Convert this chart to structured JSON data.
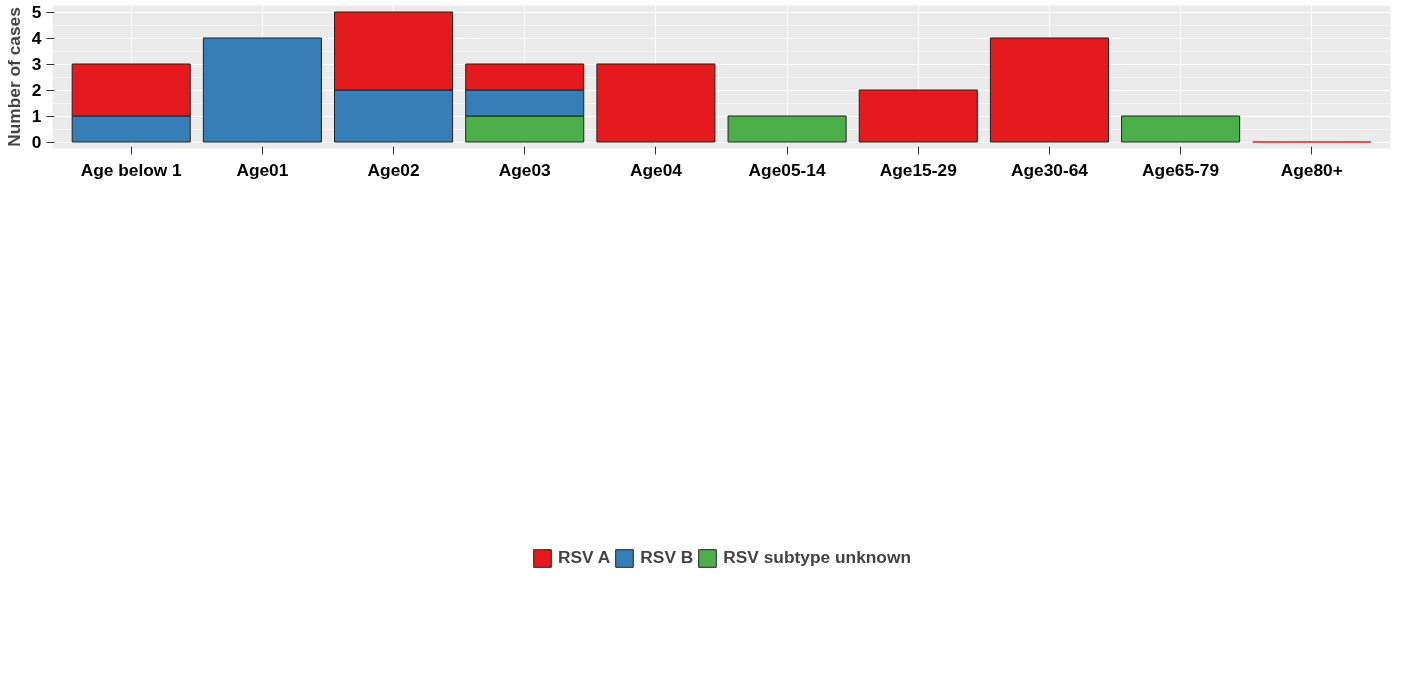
{
  "chart_data": {
    "type": "bar",
    "stacked": true,
    "ylabel": "Number of cases",
    "categories": [
      "Age below 1",
      "Age01",
      "Age02",
      "Age03",
      "Age04",
      "Age05-14",
      "Age15-29",
      "Age30-64",
      "Age65-79",
      "Age80+"
    ],
    "series": [
      {
        "name": "RSV subtype unknown",
        "color": "#4daf4a",
        "values": [
          null,
          null,
          null,
          1,
          null,
          1,
          null,
          null,
          1,
          null
        ]
      },
      {
        "name": "RSV B",
        "color": "#377eb8",
        "values": [
          1,
          4,
          2,
          1,
          null,
          null,
          null,
          null,
          null,
          null
        ]
      },
      {
        "name": "RSV A",
        "color": "#e41a1c",
        "values": [
          2,
          null,
          3,
          1,
          3,
          null,
          2,
          4,
          null,
          0
        ]
      }
    ],
    "ylim": [
      -0.25,
      5.25
    ],
    "yticks": [
      0,
      1,
      2,
      3,
      4,
      5
    ],
    "grid": true,
    "legend": "bottom"
  }
}
